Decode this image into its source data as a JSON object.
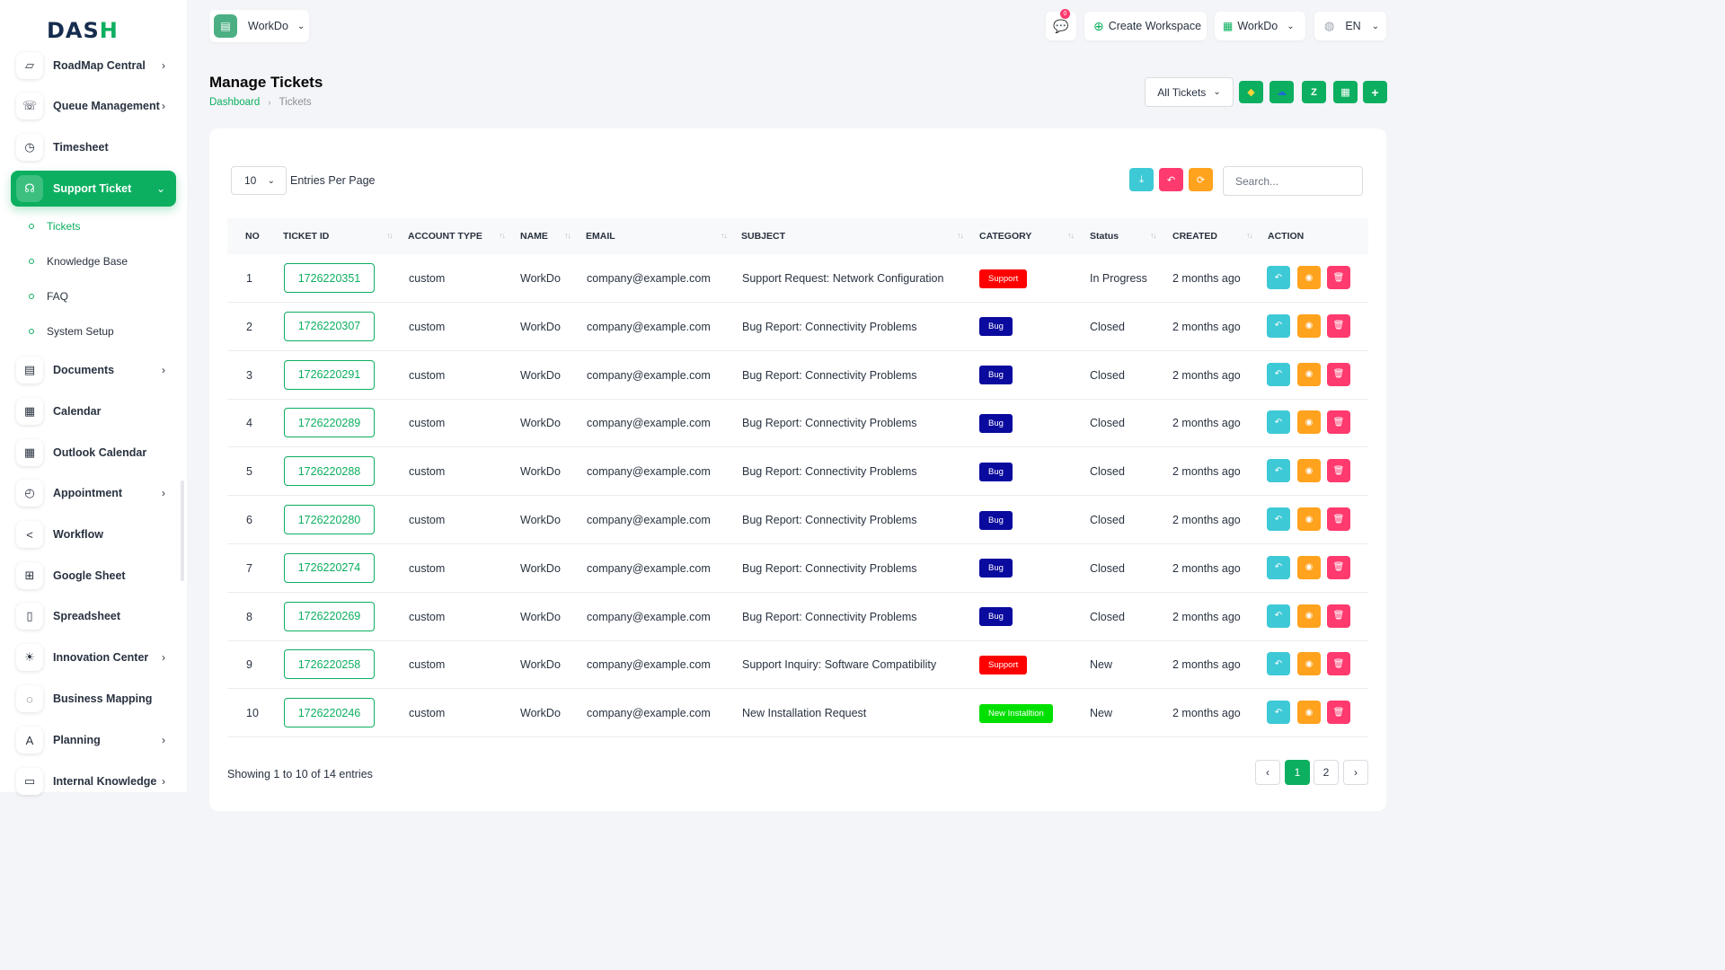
{
  "colors": {
    "primary": "#0caf60",
    "support": "#ff0000",
    "bug": "#0a0a9e",
    "new_installation": "#00e000",
    "reply": "#3ec9d6",
    "view": "#ffa21d",
    "delete": "#ff3a6e"
  },
  "logo": {
    "text_a": "DAS",
    "text_b": "H"
  },
  "sidebar": {
    "items": [
      {
        "label": "RoadMap Central",
        "icon": "map-icon",
        "chevron": true
      },
      {
        "label": "Queue Management",
        "icon": "phone-icon",
        "chevron": true
      },
      {
        "label": "Timesheet",
        "icon": "clock-icon",
        "chevron": false
      },
      {
        "label": "Support Ticket",
        "icon": "headset-icon",
        "chevron": true,
        "expanded": true
      },
      {
        "label": "Documents",
        "icon": "document-icon",
        "chevron": true
      },
      {
        "label": "Calendar",
        "icon": "calendar-icon",
        "chevron": false
      },
      {
        "label": "Outlook Calendar",
        "icon": "calendar-icon",
        "chevron": false
      },
      {
        "label": "Appointment",
        "icon": "calendar-clock-icon",
        "chevron": true
      },
      {
        "label": "Workflow",
        "icon": "share-icon",
        "chevron": false
      },
      {
        "label": "Google Sheet",
        "icon": "table-icon",
        "chevron": false
      },
      {
        "label": "Spreadsheet",
        "icon": "file-icon",
        "chevron": false
      },
      {
        "label": "Innovation Center",
        "icon": "bulb-icon",
        "chevron": true
      },
      {
        "label": "Business Mapping",
        "icon": "circle-dashed-icon",
        "chevron": false
      },
      {
        "label": "Planning",
        "icon": "planning-icon",
        "chevron": true
      },
      {
        "label": "Internal Knowledge",
        "icon": "book-icon",
        "chevron": true
      }
    ],
    "sub_items": [
      {
        "label": "Tickets",
        "active": true
      },
      {
        "label": "Knowledge Base",
        "active": false
      },
      {
        "label": "FAQ",
        "active": false
      },
      {
        "label": "System Setup",
        "active": false
      }
    ]
  },
  "header": {
    "workspace": "WorkDo",
    "notification_count": "0",
    "create_workspace": "Create Workspace",
    "workspace_menu": "WorkDo",
    "language": "EN"
  },
  "page": {
    "title": "Manage Tickets",
    "breadcrumb": {
      "home": "Dashboard",
      "current": "Tickets"
    },
    "filter": "All Tickets"
  },
  "table_controls": {
    "per_page_value": "10",
    "per_page_label": "Entries Per Page",
    "search_placeholder": "Search..."
  },
  "table": {
    "columns": [
      "NO",
      "TICKET ID",
      "ACCOUNT TYPE",
      "NAME",
      "EMAIL",
      "SUBJECT",
      "CATEGORY",
      "Status",
      "CREATED",
      "ACTION"
    ],
    "rows": [
      {
        "no": "1",
        "ticket_id": "1726220351",
        "account_type": "custom",
        "name": "WorkDo",
        "email": "company@example.com",
        "subject": "Support Request: Network Configuration",
        "category": "Support",
        "status": "In Progress",
        "created": "2 months ago"
      },
      {
        "no": "2",
        "ticket_id": "1726220307",
        "account_type": "custom",
        "name": "WorkDo",
        "email": "company@example.com",
        "subject": "Bug Report: Connectivity Problems",
        "category": "Bug",
        "status": "Closed",
        "created": "2 months ago"
      },
      {
        "no": "3",
        "ticket_id": "1726220291",
        "account_type": "custom",
        "name": "WorkDo",
        "email": "company@example.com",
        "subject": "Bug Report: Connectivity Problems",
        "category": "Bug",
        "status": "Closed",
        "created": "2 months ago"
      },
      {
        "no": "4",
        "ticket_id": "1726220289",
        "account_type": "custom",
        "name": "WorkDo",
        "email": "company@example.com",
        "subject": "Bug Report: Connectivity Problems",
        "category": "Bug",
        "status": "Closed",
        "created": "2 months ago"
      },
      {
        "no": "5",
        "ticket_id": "1726220288",
        "account_type": "custom",
        "name": "WorkDo",
        "email": "company@example.com",
        "subject": "Bug Report: Connectivity Problems",
        "category": "Bug",
        "status": "Closed",
        "created": "2 months ago"
      },
      {
        "no": "6",
        "ticket_id": "1726220280",
        "account_type": "custom",
        "name": "WorkDo",
        "email": "company@example.com",
        "subject": "Bug Report: Connectivity Problems",
        "category": "Bug",
        "status": "Closed",
        "created": "2 months ago"
      },
      {
        "no": "7",
        "ticket_id": "1726220274",
        "account_type": "custom",
        "name": "WorkDo",
        "email": "company@example.com",
        "subject": "Bug Report: Connectivity Problems",
        "category": "Bug",
        "status": "Closed",
        "created": "2 months ago"
      },
      {
        "no": "8",
        "ticket_id": "1726220269",
        "account_type": "custom",
        "name": "WorkDo",
        "email": "company@example.com",
        "subject": "Bug Report: Connectivity Problems",
        "category": "Bug",
        "status": "Closed",
        "created": "2 months ago"
      },
      {
        "no": "9",
        "ticket_id": "1726220258",
        "account_type": "custom",
        "name": "WorkDo",
        "email": "company@example.com",
        "subject": "Support Inquiry: Software Compatibility",
        "category": "Support",
        "status": "New",
        "created": "2 months ago"
      },
      {
        "no": "10",
        "ticket_id": "1726220246",
        "account_type": "custom",
        "name": "WorkDo",
        "email": "company@example.com",
        "subject": "New Installation Request",
        "category": "New Installtion",
        "status": "New",
        "created": "2 months ago"
      }
    ]
  },
  "footer": {
    "info": "Showing 1 to 10 of 14 entries",
    "pages": [
      "1",
      "2"
    ],
    "current_page": "1"
  }
}
